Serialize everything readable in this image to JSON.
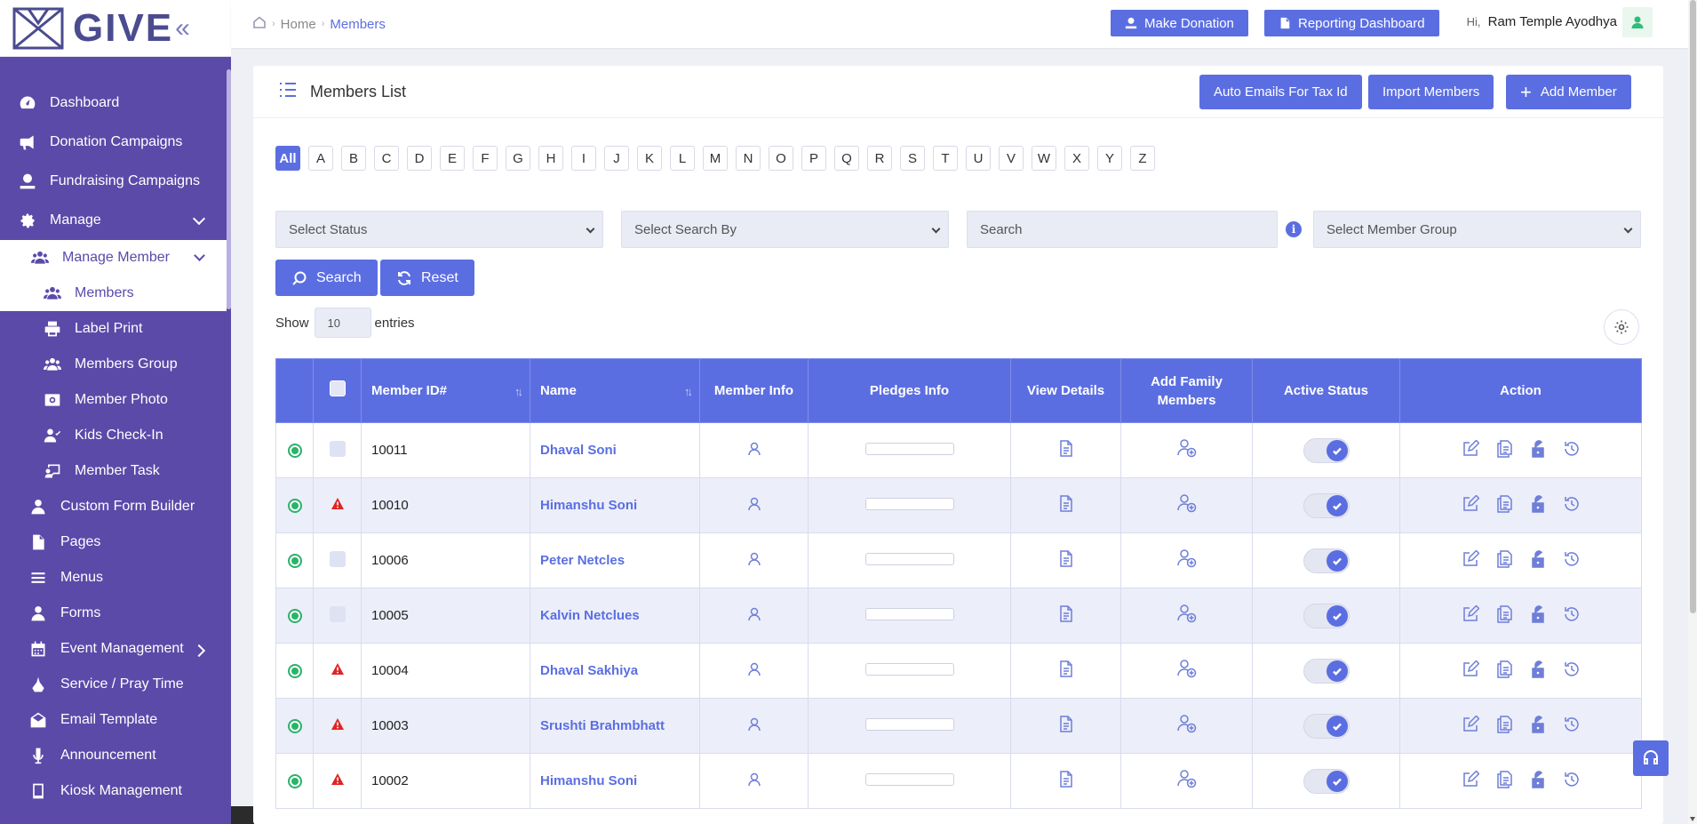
{
  "brand": {
    "name": "GIVE",
    "collapse": "«"
  },
  "sidebar": {
    "top_items": [
      {
        "label": "Dashboard",
        "icon": "gauge-icon"
      },
      {
        "label": "Donation Campaigns",
        "icon": "megaphone-icon"
      },
      {
        "label": "Fundraising Campaigns",
        "icon": "hand-coin-icon"
      },
      {
        "label": "Manage",
        "icon": "gear-icon"
      }
    ],
    "manage_member": {
      "label": "Manage Member",
      "icon": "users-icon"
    },
    "members": {
      "label": "Members",
      "icon": "users-icon"
    },
    "sub_items": [
      {
        "label": "Label Print",
        "icon": "printer-icon"
      },
      {
        "label": "Members Group",
        "icon": "users-icon"
      },
      {
        "label": "Member Photo",
        "icon": "camera-icon"
      },
      {
        "label": "Kids Check-In",
        "icon": "user-check-icon"
      },
      {
        "label": "Member Task",
        "icon": "chalkboard-icon"
      }
    ],
    "bottom_items": [
      {
        "label": "Custom Form Builder",
        "icon": "user-icon"
      },
      {
        "label": "Pages",
        "icon": "file-icon"
      },
      {
        "label": "Menus",
        "icon": "menu-icon"
      },
      {
        "label": "Forms",
        "icon": "user-icon"
      },
      {
        "label": "Event Management",
        "icon": "calendar-icon"
      },
      {
        "label": "Service / Pray Time",
        "icon": "pray-icon"
      },
      {
        "label": "Email Template",
        "icon": "envelope-icon"
      },
      {
        "label": "Announcement",
        "icon": "microphone-icon"
      },
      {
        "label": "Kiosk Management",
        "icon": "tablet-icon"
      }
    ]
  },
  "header": {
    "breadcrumb": {
      "home": "Home",
      "current": "Members"
    },
    "make_donation": "Make Donation",
    "reporting_dashboard": "Reporting Dashboard",
    "greeting_prefix": "Hi,",
    "user_name": "Ram Temple Ayodhya"
  },
  "card": {
    "title": "Members List",
    "auto_emails": "Auto Emails For Tax Id",
    "import_members": "Import Members",
    "add_member": "Add Member"
  },
  "alphabet": [
    "All",
    "A",
    "B",
    "C",
    "D",
    "E",
    "F",
    "G",
    "H",
    "I",
    "J",
    "K",
    "L",
    "M",
    "N",
    "O",
    "P",
    "Q",
    "R",
    "S",
    "T",
    "U",
    "V",
    "W",
    "X",
    "Y",
    "Z"
  ],
  "filters": {
    "status_placeholder": "Select Status",
    "search_by_placeholder": "Select Search By",
    "search_placeholder": "Search",
    "group_placeholder": "Select Member Group",
    "search_button": "Search",
    "reset_button": "Reset"
  },
  "entries": {
    "show": "Show",
    "value": "10",
    "entries": "entries"
  },
  "table": {
    "columns": {
      "member_id": "Member ID#",
      "name": "Name",
      "member_info": "Member Info",
      "pledges_info": "Pledges Info",
      "view_details": "View Details",
      "add_family": "Add Family Members",
      "active_status": "Active Status",
      "action": "Action"
    },
    "rows": [
      {
        "id": "10011",
        "name": "Dhaval Soni",
        "flag": "checkbox",
        "active": true
      },
      {
        "id": "10010",
        "name": "Himanshu Soni",
        "flag": "warning",
        "active": true
      },
      {
        "id": "10006",
        "name": "Peter Netcles",
        "flag": "checkbox",
        "active": true
      },
      {
        "id": "10005",
        "name": "Kalvin Netclues",
        "flag": "checkbox",
        "active": true
      },
      {
        "id": "10004",
        "name": "Dhaval Sakhiya",
        "flag": "warning",
        "active": true
      },
      {
        "id": "10003",
        "name": "Srushti Brahmbhatt",
        "flag": "warning",
        "active": true
      },
      {
        "id": "10002",
        "name": "Himanshu Soni",
        "flag": "warning",
        "active": true
      }
    ]
  },
  "colors": {
    "primary": "#5b6ee1",
    "sidebar": "#5b4aa8",
    "success": "#2ab36a",
    "danger": "#e02424"
  }
}
